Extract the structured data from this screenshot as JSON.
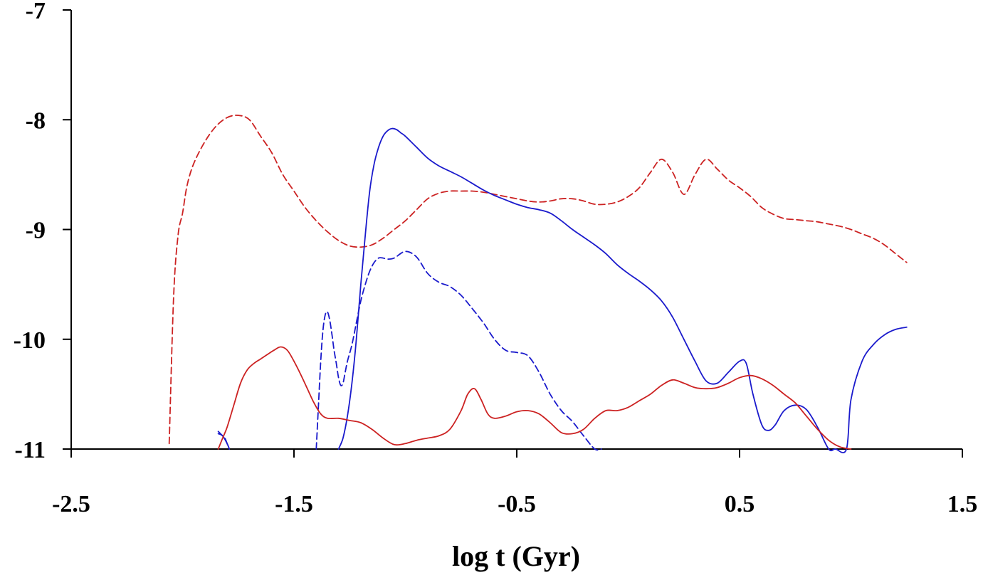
{
  "chart_data": {
    "type": "line",
    "title": "",
    "xlabel": "log t (Gyr)",
    "ylabel": "",
    "xlim": [
      -2.5,
      1.5
    ],
    "ylim": [
      -11,
      -7
    ],
    "xticks": [
      -2.5,
      -1.5,
      -0.5,
      0.5,
      1.5
    ],
    "xtick_labels": [
      "-2.5",
      "-1.5",
      "-0.5",
      "0.5",
      "1.5"
    ],
    "yticks": [
      -7,
      -8,
      -9,
      -10,
      -11
    ],
    "ytick_labels": [
      "-7",
      "-8",
      "-9",
      "-10",
      "-11"
    ],
    "grid": false,
    "legend": "none",
    "series": [
      {
        "name": "red-dashed",
        "color": "#cc2222",
        "style": "dashed",
        "x": [
          -2.06,
          -2.04,
          -2.02,
          -2.0,
          -1.98,
          -1.95,
          -1.9,
          -1.85,
          -1.8,
          -1.75,
          -1.7,
          -1.65,
          -1.6,
          -1.55,
          -1.5,
          -1.45,
          -1.4,
          -1.35,
          -1.3,
          -1.25,
          -1.2,
          -1.15,
          -1.1,
          -1.05,
          -1.0,
          -0.95,
          -0.9,
          -0.85,
          -0.8,
          -0.75,
          -0.7,
          -0.65,
          -0.6,
          -0.55,
          -0.5,
          -0.45,
          -0.4,
          -0.35,
          -0.3,
          -0.25,
          -0.2,
          -0.15,
          -0.1,
          -0.05,
          0.0,
          0.05,
          0.1,
          0.15,
          0.2,
          0.25,
          0.3,
          0.35,
          0.4,
          0.45,
          0.5,
          0.55,
          0.6,
          0.65,
          0.7,
          0.75,
          0.8,
          0.85,
          0.9,
          0.95,
          1.0,
          1.05,
          1.1,
          1.15,
          1.2,
          1.25
        ],
        "values": [
          -10.95,
          -9.6,
          -9.05,
          -8.85,
          -8.6,
          -8.4,
          -8.2,
          -8.06,
          -7.98,
          -7.96,
          -8.0,
          -8.15,
          -8.3,
          -8.5,
          -8.65,
          -8.8,
          -8.92,
          -9.02,
          -9.1,
          -9.15,
          -9.16,
          -9.14,
          -9.08,
          -9.0,
          -8.92,
          -8.82,
          -8.72,
          -8.67,
          -8.65,
          -8.65,
          -8.65,
          -8.66,
          -8.68,
          -8.7,
          -8.72,
          -8.74,
          -8.75,
          -8.74,
          -8.72,
          -8.72,
          -8.74,
          -8.77,
          -8.77,
          -8.75,
          -8.7,
          -8.62,
          -8.48,
          -8.36,
          -8.48,
          -8.68,
          -8.5,
          -8.36,
          -8.45,
          -8.55,
          -8.62,
          -8.7,
          -8.8,
          -8.86,
          -8.9,
          -8.91,
          -8.92,
          -8.93,
          -8.95,
          -8.97,
          -9.0,
          -9.04,
          -9.08,
          -9.14,
          -9.22,
          -9.3
        ]
      },
      {
        "name": "blue-solid",
        "color": "#1a1acc",
        "style": "solid",
        "x": [
          -1.84,
          -1.82,
          -1.8,
          -1.79,
          -1.3,
          -1.28,
          -1.26,
          -1.24,
          -1.22,
          -1.2,
          -1.18,
          -1.16,
          -1.14,
          -1.12,
          -1.1,
          -1.08,
          -1.06,
          -1.04,
          -1.02,
          -1.0,
          -0.95,
          -0.9,
          -0.85,
          -0.8,
          -0.75,
          -0.7,
          -0.65,
          -0.6,
          -0.55,
          -0.5,
          -0.45,
          -0.4,
          -0.35,
          -0.3,
          -0.25,
          -0.2,
          -0.15,
          -0.1,
          -0.05,
          0.0,
          0.05,
          0.1,
          0.15,
          0.2,
          0.25,
          0.3,
          0.35,
          0.4,
          0.45,
          0.5,
          0.53,
          0.56,
          0.6,
          0.63,
          0.66,
          0.7,
          0.75,
          0.8,
          0.85,
          0.9,
          0.93,
          0.98,
          1.0,
          1.05,
          1.1,
          1.15,
          1.2,
          1.25
        ],
        "values": [
          -10.86,
          -10.88,
          -10.95,
          -11.0,
          -11.0,
          -10.9,
          -10.7,
          -10.4,
          -10.0,
          -9.5,
          -9.05,
          -8.65,
          -8.4,
          -8.25,
          -8.15,
          -8.1,
          -8.08,
          -8.09,
          -8.12,
          -8.15,
          -8.25,
          -8.35,
          -8.42,
          -8.47,
          -8.52,
          -8.58,
          -8.64,
          -8.69,
          -8.73,
          -8.77,
          -8.8,
          -8.82,
          -8.85,
          -8.92,
          -9.0,
          -9.07,
          -9.14,
          -9.22,
          -9.32,
          -9.4,
          -9.47,
          -9.55,
          -9.65,
          -9.8,
          -10.0,
          -10.2,
          -10.38,
          -10.4,
          -10.3,
          -10.2,
          -10.22,
          -10.5,
          -10.78,
          -10.83,
          -10.78,
          -10.65,
          -10.6,
          -10.64,
          -10.8,
          -11.0,
          -11.0,
          -11.0,
          -10.55,
          -10.2,
          -10.05,
          -9.96,
          -9.91,
          -9.89
        ]
      },
      {
        "name": "blue-dashed",
        "color": "#1a1acc",
        "style": "dashed",
        "x": [
          -1.84,
          -1.83,
          -1.82,
          -1.81,
          -1.8,
          -1.79,
          -1.4,
          -1.39,
          -1.38,
          -1.37,
          -1.36,
          -1.35,
          -1.34,
          -1.33,
          -1.32,
          -1.31,
          -1.3,
          -1.29,
          -1.28,
          -1.27,
          -1.26,
          -1.24,
          -1.22,
          -1.2,
          -1.18,
          -1.16,
          -1.14,
          -1.12,
          -1.1,
          -1.08,
          -1.05,
          -1.0,
          -0.95,
          -0.9,
          -0.85,
          -0.8,
          -0.75,
          -0.7,
          -0.65,
          -0.6,
          -0.55,
          -0.5,
          -0.45,
          -0.4,
          -0.35,
          -0.3,
          -0.25,
          -0.2,
          -0.15,
          -0.12
        ],
        "values": [
          -10.84,
          -10.86,
          -10.88,
          -10.9,
          -10.95,
          -11.0,
          -11.0,
          -10.6,
          -10.2,
          -9.92,
          -9.78,
          -9.75,
          -9.82,
          -9.95,
          -10.1,
          -10.22,
          -10.35,
          -10.42,
          -10.4,
          -10.3,
          -10.2,
          -10.05,
          -9.85,
          -9.65,
          -9.5,
          -9.38,
          -9.3,
          -9.26,
          -9.26,
          -9.27,
          -9.26,
          -9.2,
          -9.25,
          -9.4,
          -9.48,
          -9.52,
          -9.6,
          -9.72,
          -9.85,
          -10.0,
          -10.1,
          -10.12,
          -10.15,
          -10.3,
          -10.5,
          -10.65,
          -10.75,
          -10.88,
          -11.0,
          -11.0
        ]
      },
      {
        "name": "red-solid",
        "color": "#cc2222",
        "style": "solid",
        "x": [
          -1.84,
          -1.82,
          -1.8,
          -1.77,
          -1.74,
          -1.71,
          -1.68,
          -1.65,
          -1.62,
          -1.59,
          -1.56,
          -1.53,
          -1.5,
          -1.47,
          -1.44,
          -1.41,
          -1.38,
          -1.35,
          -1.3,
          -1.25,
          -1.2,
          -1.15,
          -1.1,
          -1.05,
          -1.0,
          -0.95,
          -0.9,
          -0.85,
          -0.8,
          -0.75,
          -0.72,
          -0.69,
          -0.66,
          -0.63,
          -0.6,
          -0.55,
          -0.5,
          -0.45,
          -0.4,
          -0.35,
          -0.3,
          -0.25,
          -0.2,
          -0.15,
          -0.1,
          -0.05,
          0.0,
          0.05,
          0.1,
          0.15,
          0.2,
          0.25,
          0.3,
          0.35,
          0.4,
          0.45,
          0.5,
          0.55,
          0.6,
          0.65,
          0.7,
          0.75,
          0.8,
          0.85,
          0.9,
          0.95,
          1.0
        ],
        "values": [
          -11.0,
          -10.9,
          -10.8,
          -10.6,
          -10.4,
          -10.28,
          -10.22,
          -10.18,
          -10.14,
          -10.1,
          -10.07,
          -10.1,
          -10.2,
          -10.32,
          -10.45,
          -10.58,
          -10.68,
          -10.72,
          -10.72,
          -10.74,
          -10.76,
          -10.82,
          -10.9,
          -10.96,
          -10.95,
          -10.92,
          -10.9,
          -10.88,
          -10.82,
          -10.65,
          -10.5,
          -10.45,
          -10.55,
          -10.68,
          -10.72,
          -10.7,
          -10.66,
          -10.65,
          -10.68,
          -10.76,
          -10.85,
          -10.86,
          -10.82,
          -10.72,
          -10.65,
          -10.65,
          -10.62,
          -10.56,
          -10.5,
          -10.42,
          -10.37,
          -10.4,
          -10.44,
          -10.45,
          -10.44,
          -10.4,
          -10.35,
          -10.33,
          -10.36,
          -10.42,
          -10.5,
          -10.58,
          -10.7,
          -10.82,
          -10.92,
          -10.98,
          -11.0
        ]
      }
    ]
  }
}
